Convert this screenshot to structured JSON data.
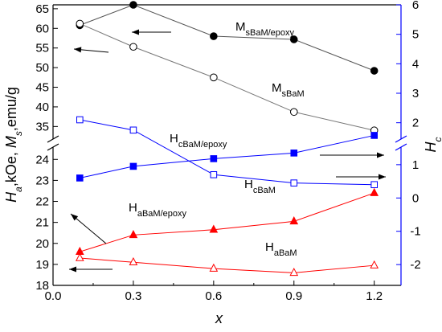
{
  "chart_data": {
    "type": "line",
    "x_axis": {
      "label": "x",
      "range": [
        0.0,
        1.3
      ],
      "ticks": [
        "0.0",
        "0.3",
        "0.6",
        "0.9",
        "1.2"
      ]
    },
    "left_axis": {
      "label_parts": [
        "H",
        "a",
        ",kOe, ",
        "M",
        "s",
        ",emu/g"
      ],
      "upper_segment": {
        "range": [
          32,
          66
        ],
        "ticks": [
          "35",
          "40",
          "45",
          "50",
          "55",
          "60",
          "65"
        ]
      },
      "lower_segment": {
        "range": [
          18,
          24.7
        ],
        "ticks": [
          "18",
          "19",
          "20",
          "21",
          "22",
          "23",
          "24"
        ]
      }
    },
    "right_axis": {
      "label_parts": [
        "H",
        "c"
      ],
      "color": "#0000ff",
      "upper_segment": {
        "range": [
          1.5,
          6
        ],
        "ticks": [
          "2",
          "3",
          "4",
          "5",
          "6"
        ]
      },
      "lower_segment": {
        "range": [
          -2.6,
          1.6
        ],
        "ticks": [
          "-2",
          "-1",
          "0",
          "1"
        ]
      }
    },
    "series": [
      {
        "name": "MsBaM/epoxy",
        "label_main": "M",
        "label_sub": "sBaM/epoxy",
        "axis": "left",
        "color": "#000000",
        "line_color": "#555555",
        "marker": "filled-circle",
        "x": [
          0.1,
          0.3,
          0.6,
          0.9,
          1.2
        ],
        "y": [
          60.8,
          66.0,
          58.0,
          57.2,
          49.2
        ]
      },
      {
        "name": "MsBaM",
        "label_main": "M",
        "label_sub": "sBaM",
        "axis": "left",
        "color": "#000000",
        "line_color": "#777777",
        "marker": "open-circle",
        "x": [
          0.1,
          0.3,
          0.6,
          0.9,
          1.2
        ],
        "y": [
          61.2,
          55.3,
          47.5,
          38.7,
          34.0
        ]
      },
      {
        "name": "HcBaM/epoxy",
        "label_main": "H",
        "label_sub": "cBaM/epoxy",
        "axis": "right",
        "color": "#0000ff",
        "line_color": "#0000ff",
        "marker": "filled-square",
        "x": [
          0.1,
          0.3,
          0.6,
          0.9,
          1.2
        ],
        "y": [
          0.6,
          0.95,
          1.18,
          1.35,
          1.57
        ]
      },
      {
        "name": "HcBaM",
        "label_main": "H",
        "label_sub": "cBaM",
        "axis": "right",
        "color": "#0000ff",
        "line_color": "#0000ff",
        "marker": "open-square",
        "x": [
          0.1,
          0.3,
          0.6,
          0.9,
          1.2
        ],
        "y": [
          2.1,
          1.75,
          0.7,
          0.45,
          0.4
        ]
      },
      {
        "name": "HaBaM/epoxy",
        "label_main": "H",
        "label_sub": "aBaM/epoxy",
        "axis": "left",
        "color": "#ff0000",
        "line_color": "#ff0000",
        "marker": "filled-triangle",
        "x": [
          0.1,
          0.3,
          0.6,
          0.9,
          1.2
        ],
        "y": [
          19.6,
          20.4,
          20.65,
          21.05,
          22.4
        ]
      },
      {
        "name": "HaBaM",
        "label_main": "H",
        "label_sub": "aBaM",
        "axis": "left",
        "color": "#ff0000",
        "line_color": "#ff0000",
        "marker": "open-triangle",
        "x": [
          0.1,
          0.3,
          0.6,
          0.9,
          1.2
        ],
        "y": [
          19.3,
          19.1,
          18.8,
          18.6,
          18.95
        ]
      }
    ],
    "annotation_arrows": [
      {
        "points_to": "left",
        "series": "MsBaM/epoxy"
      },
      {
        "points_to": "left",
        "series": "MsBaM"
      },
      {
        "points_to": "left",
        "series": "HaBaM/epoxy"
      },
      {
        "points_to": "left",
        "series": "HaBaM"
      },
      {
        "points_to": "right",
        "series": "HcBaM/epoxy"
      },
      {
        "points_to": "right",
        "series": "HcBaM"
      }
    ],
    "axis_breaks": [
      "left",
      "right"
    ],
    "legend": "none",
    "grid": false
  }
}
